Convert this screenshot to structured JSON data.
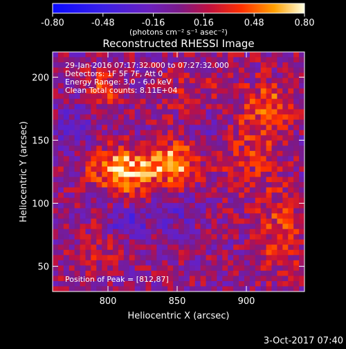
{
  "figure": {
    "timestamp": "3-Oct-2017 07:40"
  },
  "colorbar": {
    "ticks": [
      "-0.80",
      "-0.48",
      "-0.16",
      "0.16",
      "0.48",
      "0.80"
    ],
    "unit_label": "(photons cm⁻² s⁻¹ asec⁻²)",
    "range": [
      -0.8,
      0.8
    ]
  },
  "chart_data": {
    "type": "heatmap",
    "title": "Reconstructed RHESSI Image",
    "xlabel": "Heliocentric X (arcsec)",
    "ylabel": "Heliocentric Y (arcsec)",
    "xlim": [
      760,
      942
    ],
    "ylim": [
      30,
      220
    ],
    "x_ticks": [
      800,
      850,
      900
    ],
    "y_ticks": [
      50,
      100,
      150,
      200
    ],
    "annotations": [
      "29-Jan-2016 07:17:32.000 to 07:27:32.000",
      "Detectors: 1F 5F 7F, Att 0",
      "Energy Range: 3.0 - 6.0 keV",
      "Clean     Total counts: 8.11E+04"
    ],
    "peak_label": "Position of Peak = [812,87]",
    "peak_position": [
      812,
      87
    ],
    "value_range": [
      -0.8,
      0.8
    ]
  }
}
